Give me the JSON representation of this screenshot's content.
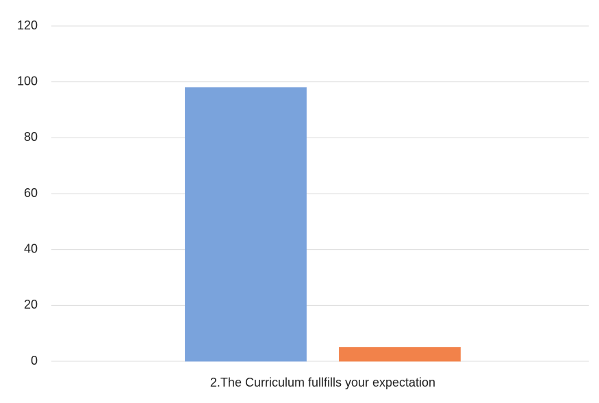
{
  "chart_data": {
    "type": "bar",
    "categories": [
      "2.The Curriculum fullfills your expectation"
    ],
    "series": [
      {
        "color": "#7aa3dc",
        "values": [
          98
        ]
      },
      {
        "color": "#f2824a",
        "values": [
          5
        ]
      }
    ],
    "ylim": [
      0,
      120
    ],
    "yticks": [
      0,
      20,
      40,
      60,
      80,
      100,
      120
    ],
    "grid": true
  }
}
